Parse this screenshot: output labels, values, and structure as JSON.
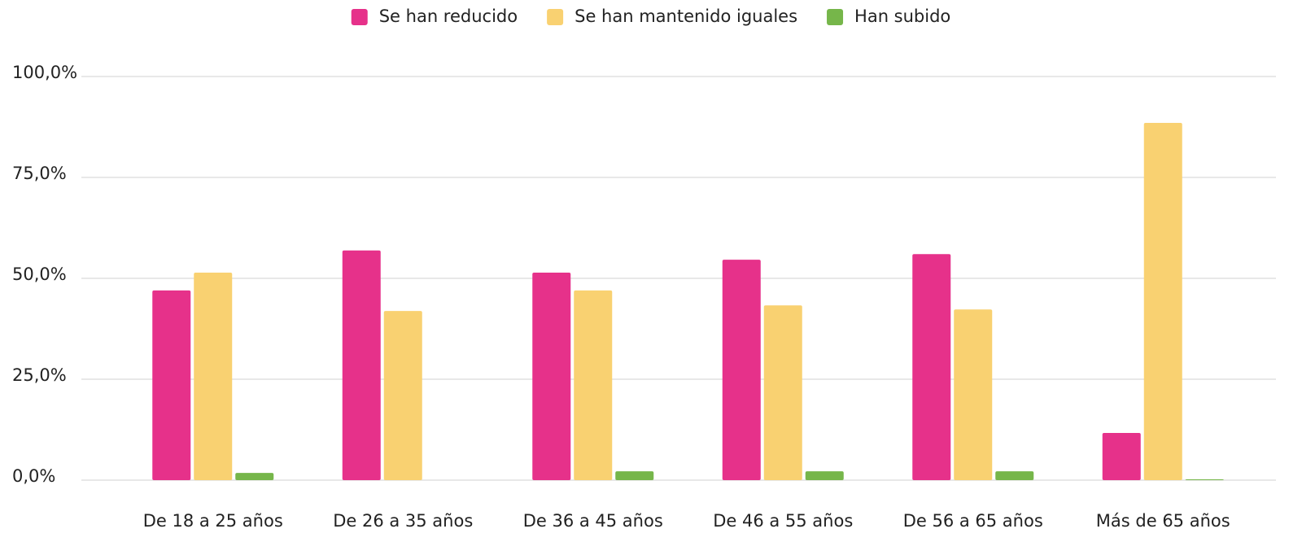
{
  "chart_data": {
    "type": "bar",
    "categories": [
      "De 18 a 25 años",
      "De 26 a 35 años",
      "De 36 a 45 años",
      "De 46 a 55 años",
      "De 56 a 65 años",
      "Más de 65 años"
    ],
    "series": [
      {
        "name": "Se han reducido",
        "color": "#e6318a",
        "values": [
          47.0,
          56.9,
          51.4,
          54.6,
          56.0,
          11.7
        ]
      },
      {
        "name": "Se han mantenido iguales",
        "color": "#f9d171",
        "values": [
          51.4,
          41.9,
          47.0,
          43.3,
          42.3,
          88.5
        ]
      },
      {
        "name": "Han subido",
        "color": "#76b64a",
        "values": [
          1.8,
          0,
          2.2,
          2.2,
          2.2,
          0.2
        ]
      }
    ],
    "ylim": [
      0,
      100
    ],
    "yticks": [
      {
        "value": 0,
        "label": "0,0%"
      },
      {
        "value": 25,
        "label": "25,0%"
      },
      {
        "value": 50,
        "label": "50,0%"
      },
      {
        "value": 75,
        "label": "75,0%"
      },
      {
        "value": 100,
        "label": "100,0%"
      }
    ],
    "grid": true,
    "legend": "top"
  }
}
